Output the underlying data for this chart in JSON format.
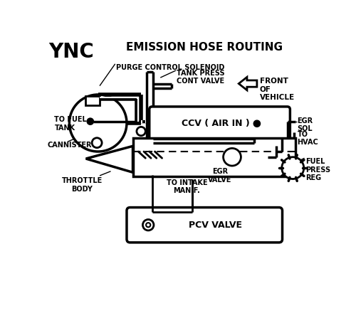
{
  "bg_color": "#ffffff",
  "line_color": "#000000",
  "title": "EMISSION HOSE ROUTING",
  "ync": "YNC",
  "labels": {
    "purge_control": "PURGE CONTROL SOLENOID",
    "cannister": "CANNISTER",
    "to_fuel_tank": "TO FUEL\nTANK",
    "tank_press": "TANK PRESS\nCONT VALVE",
    "front_of_vehicle": "FRONT\nOF\nVEHICLE",
    "ccv": "CCV ( AIR IN )",
    "egr_sol": "EGR\nSOL",
    "to_hvac": "TO\nHVAC",
    "egr_valve": "EGR\nVALVE",
    "throttle_body": "THROTTLE\nBODY",
    "to_intake": "TO INTAKE\nMANIF.",
    "pcv_valve": "PCV VALVE",
    "fuel_press_reg": "FUEL\nPRESS\nREG"
  }
}
